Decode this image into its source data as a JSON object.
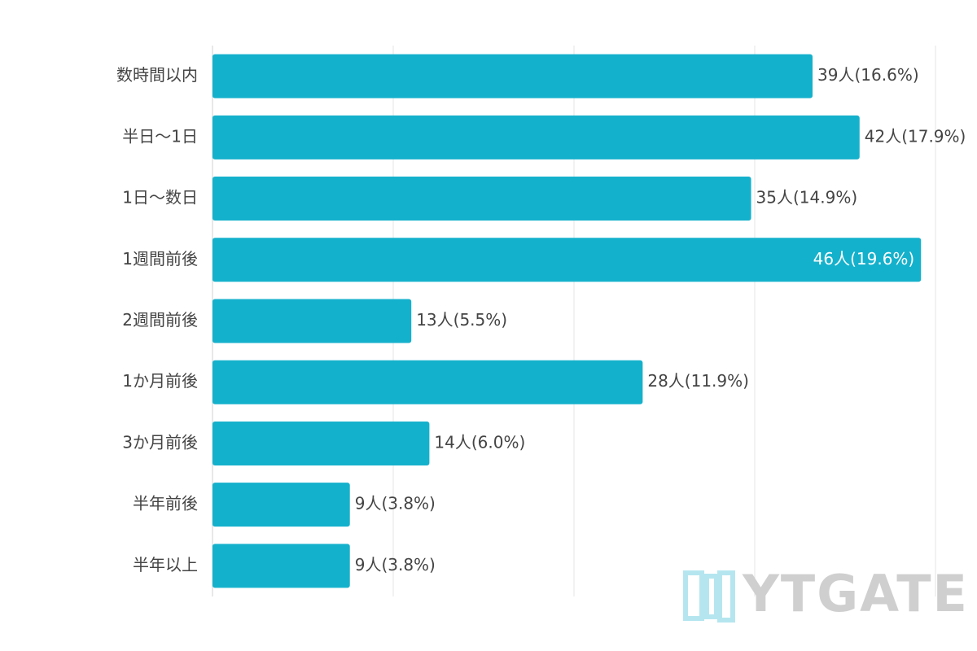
{
  "chart_data": {
    "type": "bar",
    "orientation": "horizontal",
    "categories": [
      "数時間以内",
      "半日〜1日",
      "1日〜数日",
      "1週間前後",
      "2週間前後",
      "1か月前後",
      "3か月前後",
      "半年前後",
      "半年以上"
    ],
    "values": [
      16.6,
      17.9,
      14.9,
      19.6,
      5.5,
      11.9,
      6.0,
      3.8,
      3.8
    ],
    "value_labels": [
      "39人(16.6%)",
      "42人(17.9%)",
      "35人(14.9%)",
      "46人(19.6%)",
      "13人(5.5%)",
      "28人(11.9%)",
      "14人(6.0%)",
      "9人(3.8%)",
      "9人(3.8%)"
    ],
    "color": "#14b1cc",
    "xlim": [
      0,
      20
    ],
    "xticks": [
      0,
      5,
      10,
      15,
      20
    ],
    "grid": true
  },
  "watermark": "YTGATE"
}
